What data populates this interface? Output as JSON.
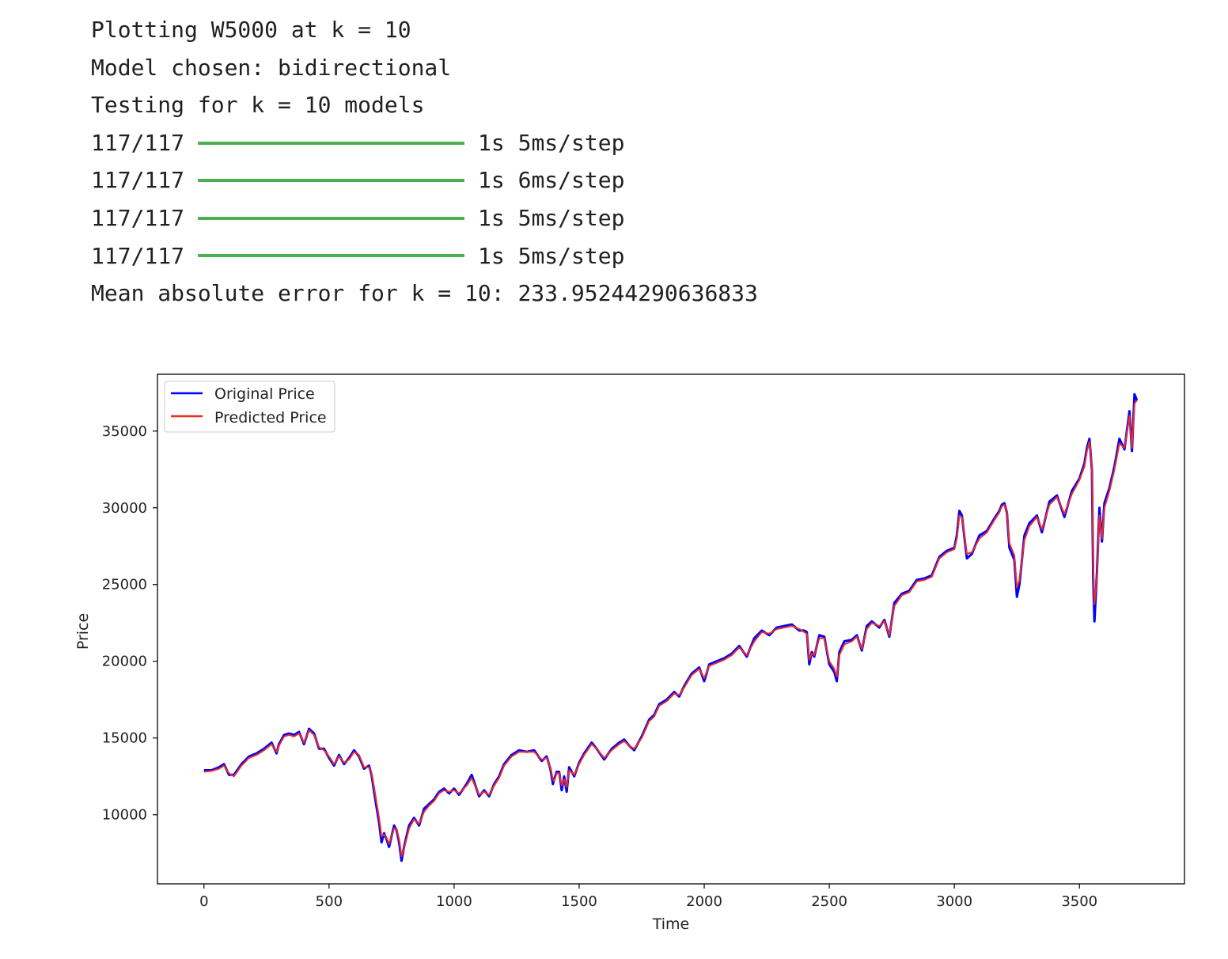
{
  "console": {
    "line1": "Plotting W5000 at k = 10",
    "line2": "Model chosen: bidirectional",
    "line3": "Testing for k = 10 models",
    "progress": [
      {
        "count": "117/117",
        "fraction": 1.0,
        "timing": "1s 5ms/step"
      },
      {
        "count": "117/117",
        "fraction": 1.0,
        "timing": "1s 6ms/step"
      },
      {
        "count": "117/117",
        "fraction": 1.0,
        "timing": "1s 5ms/step"
      },
      {
        "count": "117/117",
        "fraction": 1.0,
        "timing": "1s 5ms/step"
      }
    ],
    "result": "Mean absolute error for k = 10: 233.95244290636833"
  },
  "colors": {
    "progress_bar": "#4caf50",
    "original": "#0000ff",
    "predicted": "#ee2a24"
  },
  "chart_data": {
    "type": "line",
    "xlabel": "Time",
    "ylabel": "Price",
    "xlim": [
      -186,
      3920
    ],
    "ylim": [
      5500,
      38700
    ],
    "xticks": [
      0,
      500,
      1000,
      1500,
      2000,
      2500,
      3000,
      3500
    ],
    "xtick_labels": [
      "0",
      "500",
      "1000",
      "1500",
      "2000",
      "2500",
      "3000",
      "3500"
    ],
    "yticks": [
      10000,
      15000,
      20000,
      25000,
      30000,
      35000
    ],
    "ytick_labels": [
      "10000",
      "15000",
      "20000",
      "25000",
      "30000",
      "35000"
    ],
    "legend": {
      "position": "upper left",
      "entries": [
        "Original Price",
        "Predicted Price"
      ]
    },
    "grid": false,
    "series": [
      {
        "name": "Original Price",
        "color": "#0000ff",
        "x": [
          0,
          30,
          60,
          80,
          100,
          120,
          150,
          180,
          210,
          240,
          270,
          290,
          300,
          320,
          340,
          360,
          380,
          400,
          420,
          440,
          460,
          480,
          500,
          520,
          540,
          560,
          580,
          600,
          620,
          640,
          660,
          670,
          680,
          690,
          700,
          710,
          720,
          730,
          740,
          760,
          770,
          780,
          790,
          800,
          820,
          840,
          860,
          880,
          900,
          920,
          940,
          960,
          980,
          1000,
          1020,
          1050,
          1070,
          1100,
          1120,
          1140,
          1160,
          1180,
          1200,
          1230,
          1260,
          1290,
          1320,
          1350,
          1370,
          1385,
          1395,
          1400,
          1410,
          1420,
          1430,
          1440,
          1450,
          1460,
          1480,
          1500,
          1520,
          1550,
          1570,
          1600,
          1630,
          1660,
          1680,
          1700,
          1720,
          1750,
          1780,
          1800,
          1820,
          1850,
          1880,
          1900,
          1920,
          1950,
          1980,
          2000,
          2020,
          2050,
          2080,
          2110,
          2140,
          2170,
          2200,
          2230,
          2260,
          2290,
          2320,
          2350,
          2380,
          2400,
          2410,
          2420,
          2430,
          2440,
          2460,
          2480,
          2500,
          2520,
          2530,
          2540,
          2560,
          2590,
          2610,
          2630,
          2650,
          2670,
          2700,
          2720,
          2740,
          2760,
          2790,
          2820,
          2850,
          2880,
          2910,
          2940,
          2970,
          3000,
          3010,
          3020,
          3030,
          3050,
          3070,
          3100,
          3130,
          3160,
          3180,
          3190,
          3200,
          3210,
          3220,
          3240,
          3250,
          3260,
          3280,
          3300,
          3330,
          3350,
          3380,
          3410,
          3440,
          3470,
          3500,
          3520,
          3530,
          3540,
          3550,
          3555,
          3560,
          3570,
          3580,
          3590,
          3600,
          3620,
          3640,
          3660,
          3680,
          3700,
          3710,
          3720,
          3730
        ],
        "values": [
          12900,
          12900,
          13100,
          13300,
          12600,
          12600,
          13300,
          13800,
          14000,
          14300,
          14700,
          14000,
          14600,
          15200,
          15300,
          15200,
          15400,
          14600,
          15600,
          15300,
          14300,
          14300,
          13700,
          13200,
          13900,
          13300,
          13700,
          14200,
          13800,
          13000,
          13200,
          12600,
          11500,
          10500,
          9500,
          8200,
          8800,
          8400,
          7900,
          9300,
          9000,
          8200,
          7000,
          7900,
          9300,
          9800,
          9300,
          10400,
          10700,
          11000,
          11500,
          11700,
          11400,
          11700,
          11300,
          12000,
          12600,
          11200,
          11600,
          11200,
          12000,
          12500,
          13300,
          13900,
          14200,
          14100,
          14200,
          13500,
          13800,
          13000,
          12000,
          12300,
          12800,
          12800,
          11600,
          12500,
          11500,
          13100,
          12500,
          13400,
          14000,
          14700,
          14300,
          13600,
          14300,
          14700,
          14900,
          14500,
          14200,
          15100,
          16200,
          16500,
          17200,
          17500,
          18000,
          17700,
          18400,
          19200,
          19600,
          18700,
          19800,
          20000,
          20200,
          20500,
          21000,
          20300,
          21500,
          22000,
          21700,
          22200,
          22300,
          22400,
          22000,
          22000,
          21900,
          19800,
          20600,
          20300,
          21700,
          21600,
          19800,
          19300,
          18700,
          20600,
          21300,
          21400,
          21700,
          20700,
          22300,
          22600,
          22200,
          22700,
          21600,
          23800,
          24400,
          24600,
          25300,
          25400,
          25600,
          26800,
          27200,
          27400,
          28200,
          29800,
          29500,
          26700,
          27000,
          28200,
          28500,
          29300,
          29800,
          30200,
          30300,
          29700,
          27400,
          26600,
          24200,
          25000,
          28200,
          29000,
          29500,
          28400,
          30400,
          30800,
          29400,
          31100,
          31900,
          32900,
          33900,
          34500,
          32500,
          25500,
          22600,
          25800,
          30000,
          27800,
          30300,
          31300,
          32700,
          34500,
          33800,
          36300,
          33700,
          37400,
          37000
        ]
      },
      {
        "name": "Predicted Price",
        "color": "#ee2a24",
        "x": [
          0,
          30,
          60,
          80,
          100,
          120,
          150,
          180,
          210,
          240,
          270,
          290,
          300,
          320,
          340,
          360,
          380,
          400,
          420,
          440,
          460,
          480,
          500,
          520,
          540,
          560,
          580,
          600,
          620,
          640,
          660,
          670,
          680,
          690,
          700,
          710,
          720,
          730,
          740,
          760,
          770,
          780,
          790,
          800,
          820,
          840,
          860,
          880,
          900,
          920,
          940,
          960,
          980,
          1000,
          1020,
          1050,
          1070,
          1100,
          1120,
          1140,
          1160,
          1180,
          1200,
          1230,
          1260,
          1290,
          1320,
          1350,
          1370,
          1385,
          1395,
          1400,
          1410,
          1420,
          1430,
          1440,
          1450,
          1460,
          1480,
          1500,
          1520,
          1550,
          1570,
          1600,
          1630,
          1660,
          1680,
          1700,
          1720,
          1750,
          1780,
          1800,
          1820,
          1850,
          1880,
          1900,
          1920,
          1950,
          1980,
          2000,
          2020,
          2050,
          2080,
          2110,
          2140,
          2170,
          2200,
          2230,
          2260,
          2290,
          2320,
          2350,
          2380,
          2400,
          2410,
          2420,
          2430,
          2440,
          2460,
          2480,
          2500,
          2520,
          2530,
          2540,
          2560,
          2590,
          2610,
          2630,
          2650,
          2670,
          2700,
          2720,
          2740,
          2760,
          2790,
          2820,
          2850,
          2880,
          2910,
          2940,
          2970,
          3000,
          3010,
          3020,
          3030,
          3050,
          3070,
          3100,
          3130,
          3160,
          3180,
          3190,
          3200,
          3210,
          3220,
          3240,
          3250,
          3260,
          3280,
          3300,
          3330,
          3350,
          3380,
          3410,
          3440,
          3470,
          3500,
          3520,
          3530,
          3540,
          3550,
          3555,
          3560,
          3570,
          3580,
          3590,
          3600,
          3620,
          3640,
          3660,
          3680,
          3700,
          3710,
          3720,
          3730
        ],
        "values": [
          12800,
          12850,
          13000,
          13200,
          12700,
          12500,
          13200,
          13700,
          13900,
          14200,
          14600,
          14100,
          14500,
          15100,
          15200,
          15100,
          15300,
          14700,
          15500,
          15200,
          14400,
          14200,
          13800,
          13300,
          13800,
          13400,
          13600,
          14100,
          13900,
          13100,
          13100,
          12700,
          11800,
          10800,
          9800,
          8600,
          8700,
          8500,
          8100,
          9100,
          9100,
          8400,
          7300,
          7800,
          9100,
          9700,
          9400,
          10200,
          10600,
          10900,
          11400,
          11600,
          11500,
          11600,
          11400,
          11900,
          12400,
          11300,
          11500,
          11300,
          11900,
          12400,
          13200,
          13800,
          14100,
          14100,
          14100,
          13600,
          13700,
          13100,
          12300,
          12200,
          12700,
          12700,
          11900,
          12300,
          11800,
          12900,
          12600,
          13300,
          13900,
          14600,
          14300,
          13700,
          14200,
          14600,
          14800,
          14500,
          14300,
          15000,
          16100,
          16400,
          17100,
          17400,
          17900,
          17800,
          18300,
          19100,
          19500,
          18900,
          19700,
          19900,
          20100,
          20400,
          20900,
          20400,
          21300,
          21900,
          21800,
          22100,
          22200,
          22300,
          22100,
          21900,
          21800,
          20100,
          20500,
          20400,
          21500,
          21500,
          20000,
          19500,
          19000,
          20400,
          21100,
          21300,
          21600,
          20800,
          22100,
          22500,
          22300,
          22600,
          21700,
          23600,
          24300,
          24500,
          25200,
          25300,
          25500,
          26700,
          27100,
          27300,
          28000,
          29500,
          29400,
          27000,
          27100,
          28000,
          28400,
          29200,
          29700,
          30100,
          30200,
          29800,
          27700,
          26900,
          24800,
          25300,
          27900,
          28800,
          29400,
          28600,
          30200,
          30700,
          29600,
          30900,
          31800,
          32700,
          33700,
          34300,
          32700,
          26200,
          23700,
          25500,
          29500,
          28000,
          30000,
          31100,
          32500,
          34200,
          33900,
          36000,
          33900,
          36800,
          37000
        ]
      }
    ]
  }
}
